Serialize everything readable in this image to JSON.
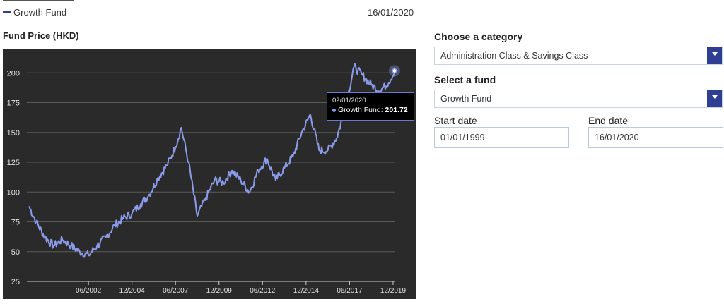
{
  "legend": {
    "label": "Growth Fund",
    "color": "#2e3f93"
  },
  "top_date": "16/01/2020",
  "chart": {
    "title": "Fund Price (HKD)",
    "tooltip": {
      "date": "02/01/2020",
      "series": "Growth Fund:",
      "value": "201.72"
    }
  },
  "form": {
    "category_label": "Choose a category",
    "category_value": "Administration Class & Savings Class",
    "fund_label": "Select a fund",
    "fund_value": "Growth Fund",
    "start_label": "Start date",
    "start_value": "01/01/1999",
    "end_label": "End date",
    "end_value": "16/01/2020"
  },
  "chart_data": {
    "type": "line",
    "title": "Fund Price (HKD)",
    "xlabel": "",
    "ylabel": "",
    "ylim": [
      25,
      212
    ],
    "y_ticks": [
      25,
      50,
      75,
      100,
      125,
      150,
      175,
      200
    ],
    "x_ticks": [
      "06/2002",
      "12/2004",
      "06/2007",
      "12/2009",
      "06/2012",
      "12/2014",
      "06/2017",
      "12/2019"
    ],
    "grid": true,
    "series": [
      {
        "name": "Growth Fund",
        "color": "#8b9bea",
        "x": [
          "01/1999",
          "06/1999",
          "12/1999",
          "06/2000",
          "12/2000",
          "06/2001",
          "12/2001",
          "06/2002",
          "12/2002",
          "06/2003",
          "12/2003",
          "06/2004",
          "12/2004",
          "06/2005",
          "12/2005",
          "06/2006",
          "12/2006",
          "06/2007",
          "10/2007",
          "03/2008",
          "09/2008",
          "03/2009",
          "09/2009",
          "03/2010",
          "09/2010",
          "03/2011",
          "09/2011",
          "03/2012",
          "09/2012",
          "03/2013",
          "09/2013",
          "03/2014",
          "09/2014",
          "03/2015",
          "09/2015",
          "03/2016",
          "09/2016",
          "03/2017",
          "09/2017",
          "03/2018",
          "09/2018",
          "03/2019",
          "09/2019",
          "01/2020"
        ],
        "values": [
          88,
          75,
          62,
          55,
          60,
          55,
          50,
          47,
          55,
          62,
          72,
          78,
          82,
          90,
          98,
          112,
          122,
          138,
          154,
          125,
          80,
          95,
          110,
          108,
          118,
          110,
          100,
          118,
          128,
          110,
          120,
          130,
          150,
          165,
          135,
          135,
          145,
          170,
          205,
          198,
          190,
          185,
          192,
          201.72
        ]
      }
    ]
  }
}
